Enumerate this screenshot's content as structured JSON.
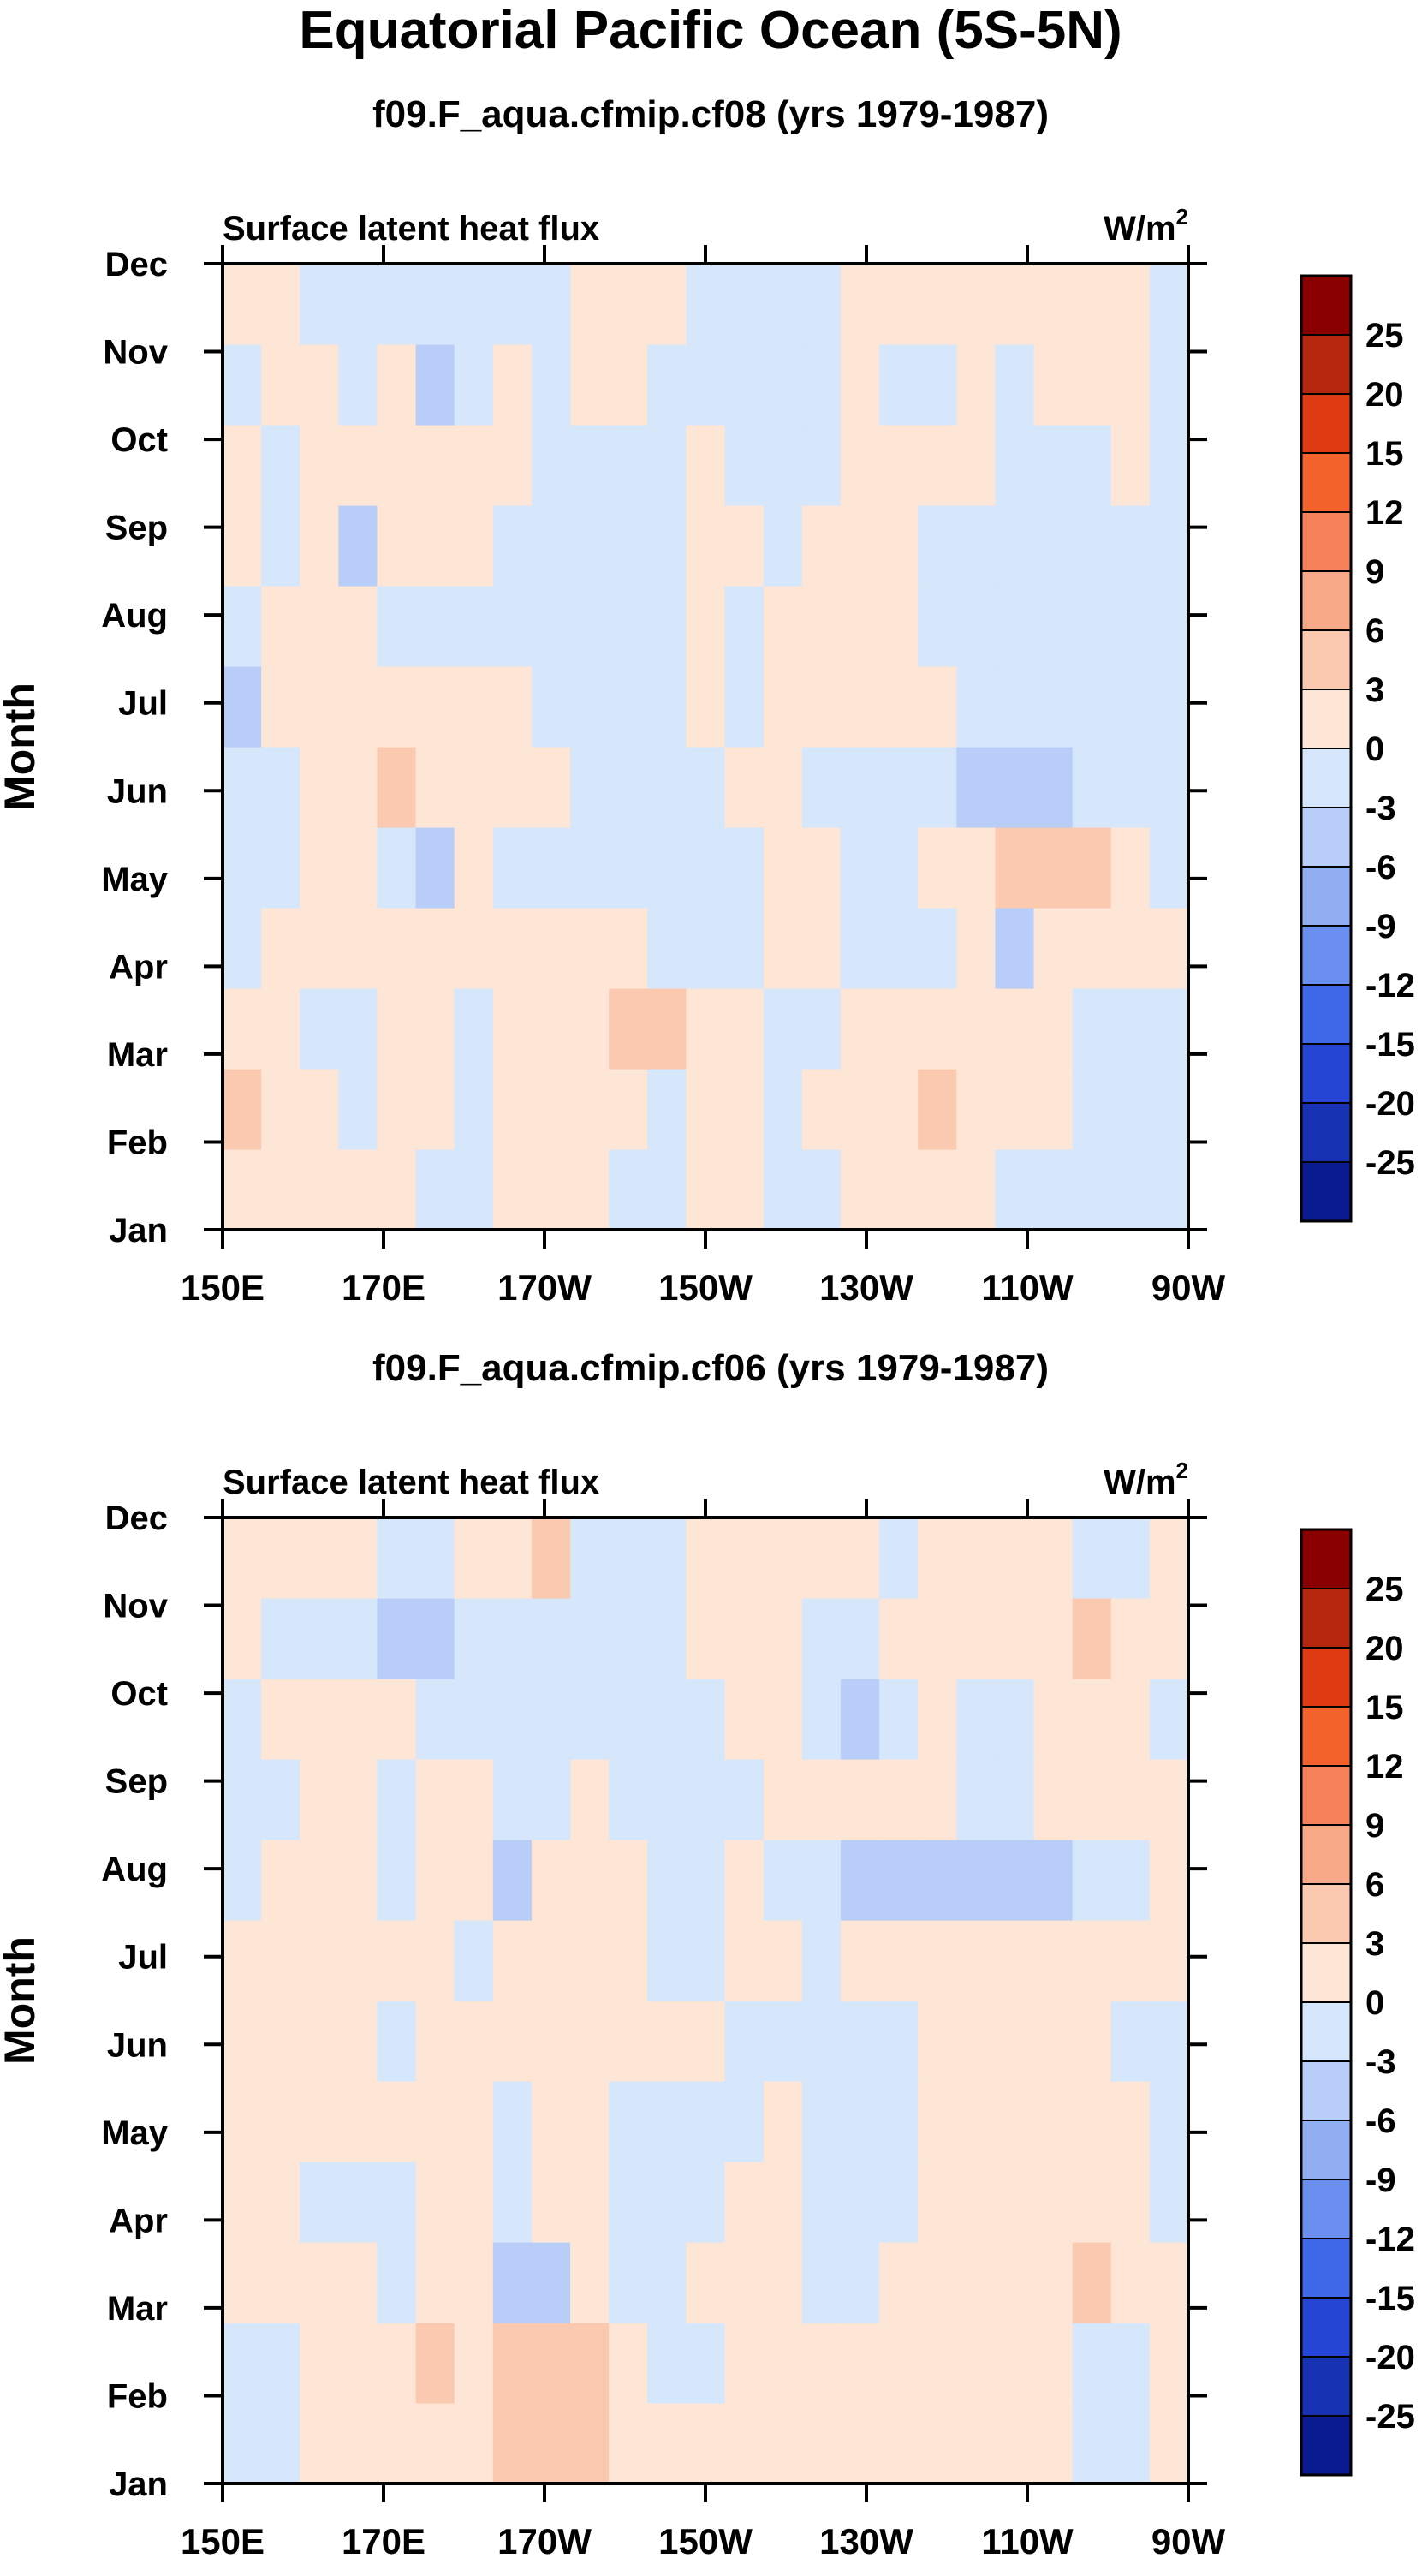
{
  "title": "Equatorial Pacific Ocean (5S-5N)",
  "colorbar": {
    "labels": [
      "25",
      "20",
      "15",
      "12",
      "9",
      "6",
      "3",
      "0",
      "-3",
      "-6",
      "-9",
      "-12",
      "-15",
      "-20",
      "-25"
    ],
    "colors": [
      "#8a0000",
      "#b5260f",
      "#de3b12",
      "#f4622c",
      "#f5825a",
      "#f7a886",
      "#fbc9b0",
      "#fde6d6",
      "#d6e6fb",
      "#b8cdf7",
      "#93aff3",
      "#6b8ff0",
      "#3f68e8",
      "#2546d4",
      "#1631b2",
      "#0a1a90"
    ]
  },
  "chart_data": [
    {
      "type": "heatmap",
      "title": "f09.F_aqua.cfmip.cf08 (yrs 1979-1987)",
      "left_label": "Surface latent heat flux",
      "units_label": "W/m",
      "units_exp": "2",
      "ylabel": "Month",
      "x_ticks": [
        "150E",
        "170E",
        "170W",
        "150W",
        "130W",
        "110W",
        "90W"
      ],
      "y_ticks": [
        "Jan",
        "Feb",
        "Mar",
        "Apr",
        "May",
        "Jun",
        "Jul",
        "Aug",
        "Sep",
        "Oct",
        "Nov",
        "Dec"
      ],
      "x_values": [
        150,
        155,
        160,
        165,
        170,
        175,
        180,
        185,
        190,
        195,
        200,
        205,
        210,
        215,
        220,
        225,
        230,
        235,
        240,
        245,
        250,
        255,
        260,
        265,
        270
      ],
      "grid": [
        [
          2,
          2,
          1,
          1,
          1,
          -1,
          -1,
          1,
          1,
          1,
          -1,
          -1,
          1,
          1,
          -1,
          -1,
          1,
          1,
          1,
          1,
          -1,
          -1,
          -1,
          -1,
          -1
        ],
        [
          6,
          2,
          1,
          -1,
          1,
          1,
          -1,
          1,
          1,
          1,
          1,
          -1,
          1,
          1,
          -1,
          1,
          1,
          2,
          6,
          2,
          1,
          1,
          -1,
          -1,
          -1
        ],
        [
          2,
          1,
          -1,
          -1,
          1,
          1,
          -1,
          1,
          1,
          1,
          4,
          4,
          2,
          1,
          -1,
          -1,
          1,
          1,
          1,
          1,
          1,
          1,
          -1,
          -1,
          -1
        ],
        [
          -1,
          1,
          1,
          2,
          1,
          1,
          1,
          1,
          1,
          1,
          1,
          -1,
          -1,
          -1,
          1,
          1,
          -1,
          -1,
          -1,
          1,
          -4,
          1,
          1,
          1,
          1
        ],
        [
          -1,
          -1,
          1,
          1,
          -1,
          -4,
          1,
          -1,
          -1,
          -1,
          -1,
          -1,
          -1,
          -1,
          1,
          1,
          -1,
          -1,
          1,
          1,
          4,
          4,
          4,
          1,
          -1
        ],
        [
          -1,
          -1,
          1,
          1,
          4,
          1,
          1,
          2,
          1,
          -1,
          -1,
          -1,
          -1,
          1,
          1,
          -1,
          -1,
          -1,
          -1,
          -4,
          -4,
          -4,
          -1,
          -1,
          -1
        ],
        [
          -4,
          1,
          1,
          1,
          1,
          1,
          1,
          1,
          -1,
          -1,
          -1,
          -1,
          1,
          -1,
          1,
          1,
          1,
          1,
          1,
          -1,
          -1,
          -1,
          -1,
          -1,
          -1
        ],
        [
          -1,
          1,
          1,
          1,
          -1,
          -1,
          -1,
          -1,
          -1,
          -1,
          -1,
          -1,
          1,
          -1,
          1,
          1,
          1,
          1,
          -1,
          -1,
          -1,
          -1,
          -1,
          -1,
          -1
        ],
        [
          1,
          -1,
          1,
          -4,
          1,
          1,
          1,
          -1,
          -1,
          -1,
          -1,
          -1,
          1,
          1,
          -1,
          1,
          1,
          1,
          -1,
          -1,
          -1,
          -1,
          -1,
          -1,
          -1
        ],
        [
          1,
          -1,
          1,
          1,
          1,
          1,
          1,
          1,
          -1,
          -1,
          -1,
          -1,
          1,
          -1,
          -1,
          -1,
          1,
          1,
          2,
          1,
          -1,
          -1,
          -1,
          1,
          -1
        ],
        [
          -1,
          1,
          1,
          -1,
          1,
          -4,
          -1,
          1,
          -1,
          1,
          1,
          -1,
          -1,
          -1,
          -1,
          -1,
          1,
          -1,
          -1,
          1,
          -1,
          1,
          1,
          1,
          -1
        ],
        [
          1,
          1,
          -1,
          -1,
          -1,
          -1,
          -1,
          -1,
          -1,
          1,
          1,
          1,
          -1,
          -1,
          -1,
          -1,
          1,
          1,
          1,
          1,
          1,
          1,
          1,
          1,
          -1
        ]
      ]
    },
    {
      "type": "heatmap",
      "title": "f09.F_aqua.cfmip.cf06 (yrs 1979-1987)",
      "left_label": "Surface latent heat flux",
      "units_label": "W/m",
      "units_exp": "2",
      "ylabel": "Month",
      "x_ticks": [
        "150E",
        "170E",
        "170W",
        "150W",
        "130W",
        "110W",
        "90W"
      ],
      "y_ticks": [
        "Jan",
        "Feb",
        "Mar",
        "Apr",
        "May",
        "Jun",
        "Jul",
        "Aug",
        "Sep",
        "Oct",
        "Nov",
        "Dec"
      ],
      "x_values": [
        150,
        155,
        160,
        165,
        170,
        175,
        180,
        185,
        190,
        195,
        200,
        205,
        210,
        215,
        220,
        225,
        230,
        235,
        240,
        245,
        250,
        255,
        260,
        265,
        270
      ],
      "grid": [
        [
          -1,
          -1,
          1,
          1,
          1,
          1,
          1,
          4,
          4,
          4,
          1,
          1,
          1,
          1,
          1,
          1,
          1,
          1,
          1,
          1,
          1,
          1,
          -1,
          -1,
          1
        ],
        [
          -1,
          -1,
          1,
          1,
          1,
          4,
          1,
          4,
          4,
          4,
          1,
          -1,
          -1,
          1,
          1,
          1,
          2,
          1,
          1,
          1,
          1,
          1,
          -1,
          -1,
          1
        ],
        [
          1,
          1,
          1,
          1,
          -1,
          1,
          1,
          -4,
          -4,
          1,
          -1,
          -1,
          1,
          1,
          1,
          -1,
          -1,
          1,
          1,
          1,
          1,
          2,
          4,
          1,
          1
        ],
        [
          1,
          1,
          -1,
          -1,
          -1,
          1,
          1,
          -1,
          1,
          1,
          -1,
          -1,
          -1,
          1,
          1,
          -1,
          -1,
          -1,
          1,
          1,
          1,
          1,
          1,
          1,
          -1
        ],
        [
          1,
          1,
          1,
          1,
          1,
          1,
          1,
          -1,
          1,
          1,
          -1,
          -1,
          -1,
          -1,
          1,
          -1,
          -1,
          -1,
          1,
          1,
          1,
          1,
          1,
          1,
          -1
        ],
        [
          1,
          2,
          1,
          1,
          -1,
          1,
          1,
          1,
          1,
          2,
          1,
          1,
          1,
          -1,
          -1,
          -1,
          -1,
          -1,
          1,
          1,
          1,
          1,
          1,
          -1,
          -1
        ],
        [
          1,
          1,
          1,
          1,
          1,
          1,
          -1,
          1,
          1,
          1,
          1,
          -1,
          -1,
          1,
          1,
          -1,
          1,
          1,
          1,
          1,
          1,
          1,
          1,
          1,
          1
        ],
        [
          -1,
          1,
          1,
          1,
          -1,
          1,
          1,
          -4,
          1,
          1,
          1,
          -1,
          -1,
          1,
          -1,
          -1,
          -4,
          -4,
          -4,
          -4,
          -4,
          -4,
          -1,
          -1,
          1
        ],
        [
          -1,
          -1,
          1,
          1,
          -1,
          1,
          1,
          -1,
          -1,
          1,
          -1,
          -1,
          -1,
          -1,
          1,
          1,
          1,
          2,
          1,
          -1,
          -1,
          1,
          1,
          1,
          1
        ],
        [
          -1,
          1,
          1,
          1,
          1,
          -1,
          -1,
          -1,
          -1,
          -1,
          -1,
          -1,
          -1,
          1,
          1,
          -1,
          -4,
          -1,
          1,
          -1,
          -1,
          1,
          1,
          1,
          -1
        ],
        [
          1,
          -1,
          -1,
          -1,
          -4,
          -4,
          -1,
          -1,
          -1,
          -1,
          -1,
          -1,
          1,
          1,
          1,
          -1,
          -1,
          1,
          1,
          1,
          1,
          1,
          4,
          1,
          1
        ],
        [
          1,
          1,
          1,
          1,
          -1,
          -1,
          1,
          1,
          4,
          -1,
          -1,
          -1,
          1,
          1,
          1,
          1,
          1,
          -1,
          1,
          1,
          1,
          1,
          -1,
          -1,
          1
        ]
      ]
    }
  ]
}
